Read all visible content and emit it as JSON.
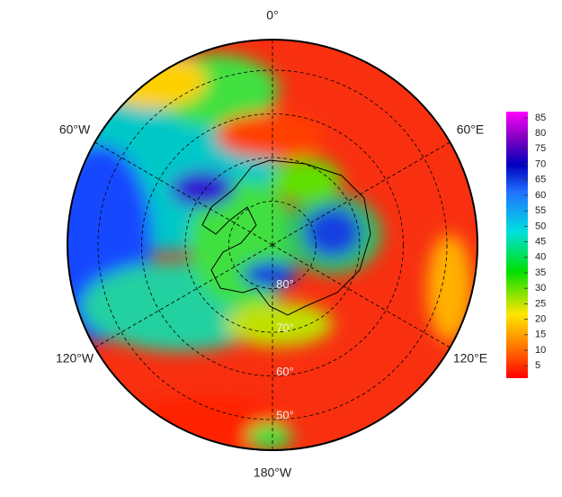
{
  "map": {
    "lat_range": [
      -90,
      -43
    ],
    "longitude_labels": [
      {
        "value": 0,
        "label": "0°"
      },
      {
        "value": 60,
        "label": "60°E"
      },
      {
        "value": 120,
        "label": "120°E"
      },
      {
        "value": 180,
        "label": "180°W"
      },
      {
        "value": -120,
        "label": "120°W"
      },
      {
        "value": -60,
        "label": "60°W"
      }
    ],
    "latitude_labels": [
      {
        "value": -80,
        "label": "80°"
      },
      {
        "value": -70,
        "label": "70°"
      },
      {
        "value": -60,
        "label": "60°"
      },
      {
        "value": -50,
        "label": "50°"
      }
    ]
  },
  "colorbar": {
    "range": [
      1,
      87
    ],
    "ticks": [
      5,
      10,
      15,
      20,
      25,
      30,
      35,
      40,
      45,
      50,
      55,
      60,
      65,
      70,
      75,
      80,
      85
    ]
  }
}
